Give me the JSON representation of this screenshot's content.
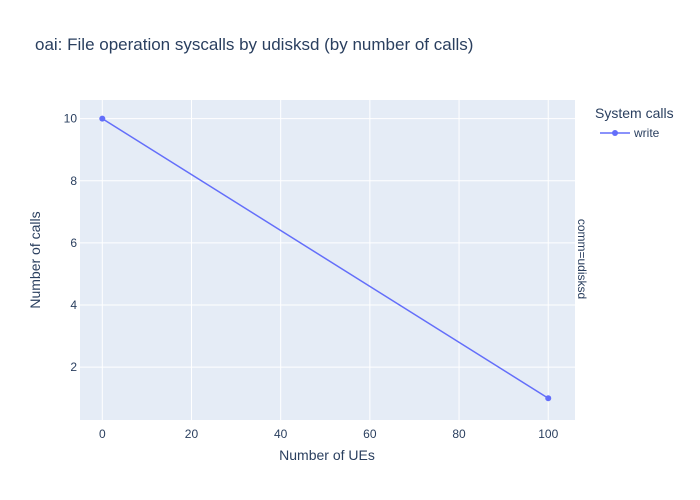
{
  "chart_data": {
    "type": "line",
    "title": "oai: File operation syscalls by udisksd (by number of calls)",
    "xlabel": "Number of UEs",
    "ylabel": "Number of calls",
    "xlim": [
      -5,
      106
    ],
    "ylim": [
      0.3,
      10.6
    ],
    "x_ticks": [
      0,
      20,
      40,
      60,
      80,
      100
    ],
    "y_ticks": [
      2,
      4,
      6,
      8,
      10
    ],
    "grid": true,
    "legend_title": "System calls",
    "legend_position": "top-right",
    "facet_label": "comm=udisksd",
    "series": [
      {
        "name": "write",
        "color": "#636efa",
        "x": [
          0,
          100
        ],
        "y": [
          10,
          1
        ]
      }
    ],
    "plot_background": "#e5ecf6",
    "grid_color": "#ffffff"
  }
}
